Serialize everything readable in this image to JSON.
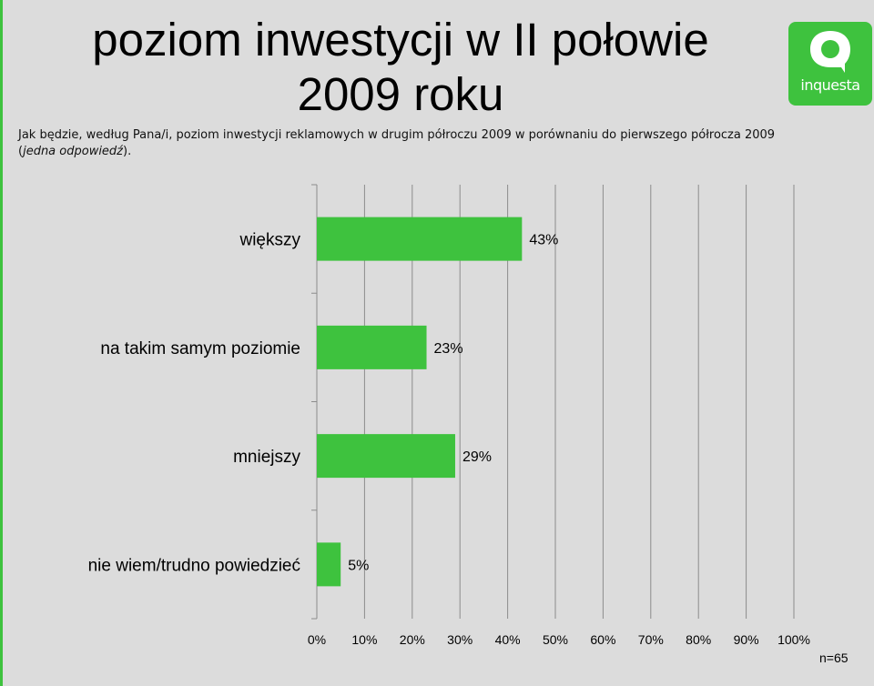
{
  "title": "poziom inwestycji w II połowie 2009 roku",
  "subtitle": {
    "text": "Jak będzie, według Pana/i, poziom inwestycji reklamowych w drugim półroczu 2009 w porównaniu do pierwszego półrocza 2009 (",
    "italic": "jedna odpowiedź",
    "end": ")."
  },
  "logo": {
    "text": "inquesta",
    "color": "#3ec23e"
  },
  "sample": "n=65",
  "chart_data": {
    "type": "bar",
    "orientation": "horizontal",
    "categories": [
      "większy",
      "na takim samym poziomie",
      "mniejszy",
      "nie wiem/trudno powiedzieć"
    ],
    "values": [
      43,
      23,
      29,
      5
    ],
    "value_labels": [
      "43%",
      "23%",
      "29%",
      "5%"
    ],
    "x_ticks": [
      "0%",
      "10%",
      "20%",
      "30%",
      "40%",
      "50%",
      "60%",
      "70%",
      "80%",
      "90%",
      "100%"
    ],
    "xlim": [
      0,
      100
    ],
    "grid": true,
    "bar_color": "#3ec23e"
  }
}
